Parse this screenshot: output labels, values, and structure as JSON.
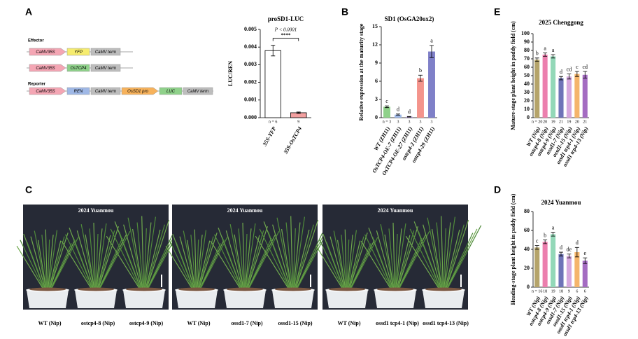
{
  "panel_labels": [
    "A",
    "B",
    "C",
    "D",
    "E"
  ],
  "diagram": {
    "effector_label": "Effector",
    "reporter_label": "Reporter",
    "rows": [
      [
        {
          "label": "CaMV35S",
          "color": "#f4a6b4"
        },
        {
          "label": "YFP",
          "color": "#f6ec6e"
        },
        {
          "label": "CaMV term",
          "color": "#bdbdbd"
        }
      ],
      [
        {
          "label": "CaMV35S",
          "color": "#f4a6b4"
        },
        {
          "label": "OsTCP4",
          "color": "#8fd18a"
        },
        {
          "label": "CaMV term",
          "color": "#bdbdbd"
        }
      ],
      [
        {
          "label": "CaMV35S",
          "color": "#f4a6b4"
        },
        {
          "label": "REN",
          "color": "#9fb8e6"
        },
        {
          "label": "CaMV term",
          "color": "#bdbdbd"
        },
        {
          "label": "OsSD1 pro",
          "color": "#f7b25b"
        },
        {
          "label": "LUC",
          "color": "#8fd18a"
        },
        {
          "label": "CaMV term",
          "color": "#bdbdbd"
        }
      ]
    ]
  },
  "photos": [
    {
      "title": "2024 Yuanmou",
      "captions": [
        "WT (Nip)",
        "ostcp4-8 (Nip)",
        "ostcp4-9 (Nip)"
      ]
    },
    {
      "title": "2024 Yuanmou",
      "captions": [
        "WT (Nip)",
        "ossd1-7 (Nip)",
        "ossd1-15 (Nip)"
      ]
    },
    {
      "title": "2024 Yuanmou",
      "captions": [
        "WT (Nip)",
        "ossd1 tcp4-1 (Nip)",
        "ossd1 tcp4-13  (Nip)"
      ]
    }
  ],
  "chart_data": [
    {
      "type": "bar",
      "title": "proSD1-LUC",
      "y_label": "LUC/REN",
      "categories": [
        "35S-YFP",
        "35S-OsTCP4"
      ],
      "values": [
        0.0038,
        0.00028
      ],
      "errors": [
        0.0003,
        4e-05
      ],
      "colors": [
        "#ffffff",
        "#f3a0a0"
      ],
      "n_labels": [
        "n = 6",
        "9"
      ],
      "annotation": "P < 0.0001",
      "significance": "****",
      "ylim": [
        0,
        0.005
      ],
      "yticks": [
        {
          "value": 0,
          "label": "0.000"
        },
        {
          "value": 0.001,
          "label": "0.001"
        },
        {
          "value": 0.002,
          "label": "0.002"
        },
        {
          "value": 0.003,
          "label": "0.003"
        },
        {
          "value": 0.004,
          "label": "0.004"
        },
        {
          "value": 0.005,
          "label": "0.005"
        }
      ]
    },
    {
      "type": "bar",
      "title": "SD1 (OsGA20ox2)",
      "y_label": "Relative expression at the maturity stage",
      "categories": [
        "WT (ZH11)",
        "OsTCP4-OE-7 (ZH11)",
        "OsTCP4-OE-27 (ZH11)",
        "ostcp4-2 (ZH11)",
        "ostcp4-29 (ZH11)"
      ],
      "values": [
        1.8,
        0.5,
        0.15,
        6.5,
        10.9
      ],
      "errors": [
        0.15,
        0.1,
        0.05,
        0.5,
        1.0
      ],
      "colors": [
        "#8fd18a",
        "#9fb8e6",
        "#b39ddb",
        "#f4948c",
        "#7f80c8"
      ],
      "letters": [
        "c",
        "d",
        "d",
        "b",
        "a"
      ],
      "n_labels": [
        "n = 3",
        "3",
        "3",
        "3",
        "3"
      ],
      "ylim": [
        0,
        15
      ],
      "yticks": [
        0,
        3,
        6,
        9,
        12,
        15
      ]
    },
    {
      "type": "bar",
      "title": "2025 Chenggong",
      "y_label": "Mature-stage plant height in paddy field (cm)",
      "categories": [
        "WT (Nip)",
        "ostcp4-8 (Nip)",
        "ostcp4-9 (Nip)",
        "ossd1-7 (Nip)",
        "ossd1-15 (Nip)",
        "ossd1 tcp4-1 (Nip)",
        "ossd1 tcp4-13 (Nip)"
      ],
      "values": [
        69,
        75,
        73,
        47,
        49,
        52,
        51
      ],
      "errors": [
        2,
        2,
        2,
        2,
        3,
        3,
        4
      ],
      "colors": [
        "#b5a46a",
        "#ec7fae",
        "#93d8b8",
        "#6f74b8",
        "#d6a8de",
        "#f5b56b",
        "#a46cc2"
      ],
      "letters": [
        "b",
        "a",
        "a",
        "d",
        "cd",
        "c",
        "cd"
      ],
      "n_labels": [
        "n = 20",
        "20",
        "19",
        "21",
        "19",
        "20",
        "21"
      ],
      "ylim": [
        0,
        100
      ],
      "yticks": [
        0,
        10,
        20,
        30,
        40,
        50,
        60,
        70,
        80,
        90,
        100
      ]
    },
    {
      "type": "bar",
      "title": "2024 Yuanmou",
      "y_label": "Heading-stage plant height in paddy field (cm)",
      "categories": [
        "WT (Nip)",
        "ostcp4-8 (Nip)",
        "ostcp4-9 (Nip)",
        "ossd1-7 (Nip)",
        "ossd1-15 (Nip)",
        "ossd1 tcp4-1 (Nip)",
        "ossd1 tcp4-13 (Nip)"
      ],
      "values": [
        42,
        48,
        56,
        35,
        33,
        37,
        28
      ],
      "errors": [
        2,
        2,
        2,
        2,
        2,
        5,
        3
      ],
      "colors": [
        "#b5a46a",
        "#ec7fae",
        "#93d8b8",
        "#6f74b8",
        "#d6a8de",
        "#f5b56b",
        "#a46cc2"
      ],
      "letters": [
        "c",
        "b",
        "a",
        "d",
        "de",
        "d",
        "e"
      ],
      "n_labels": [
        "n = 16",
        "18",
        "19",
        "18",
        "9",
        "6",
        "6"
      ],
      "ylim": [
        0,
        80
      ],
      "yticks": [
        0,
        20,
        40,
        60,
        80
      ]
    }
  ]
}
